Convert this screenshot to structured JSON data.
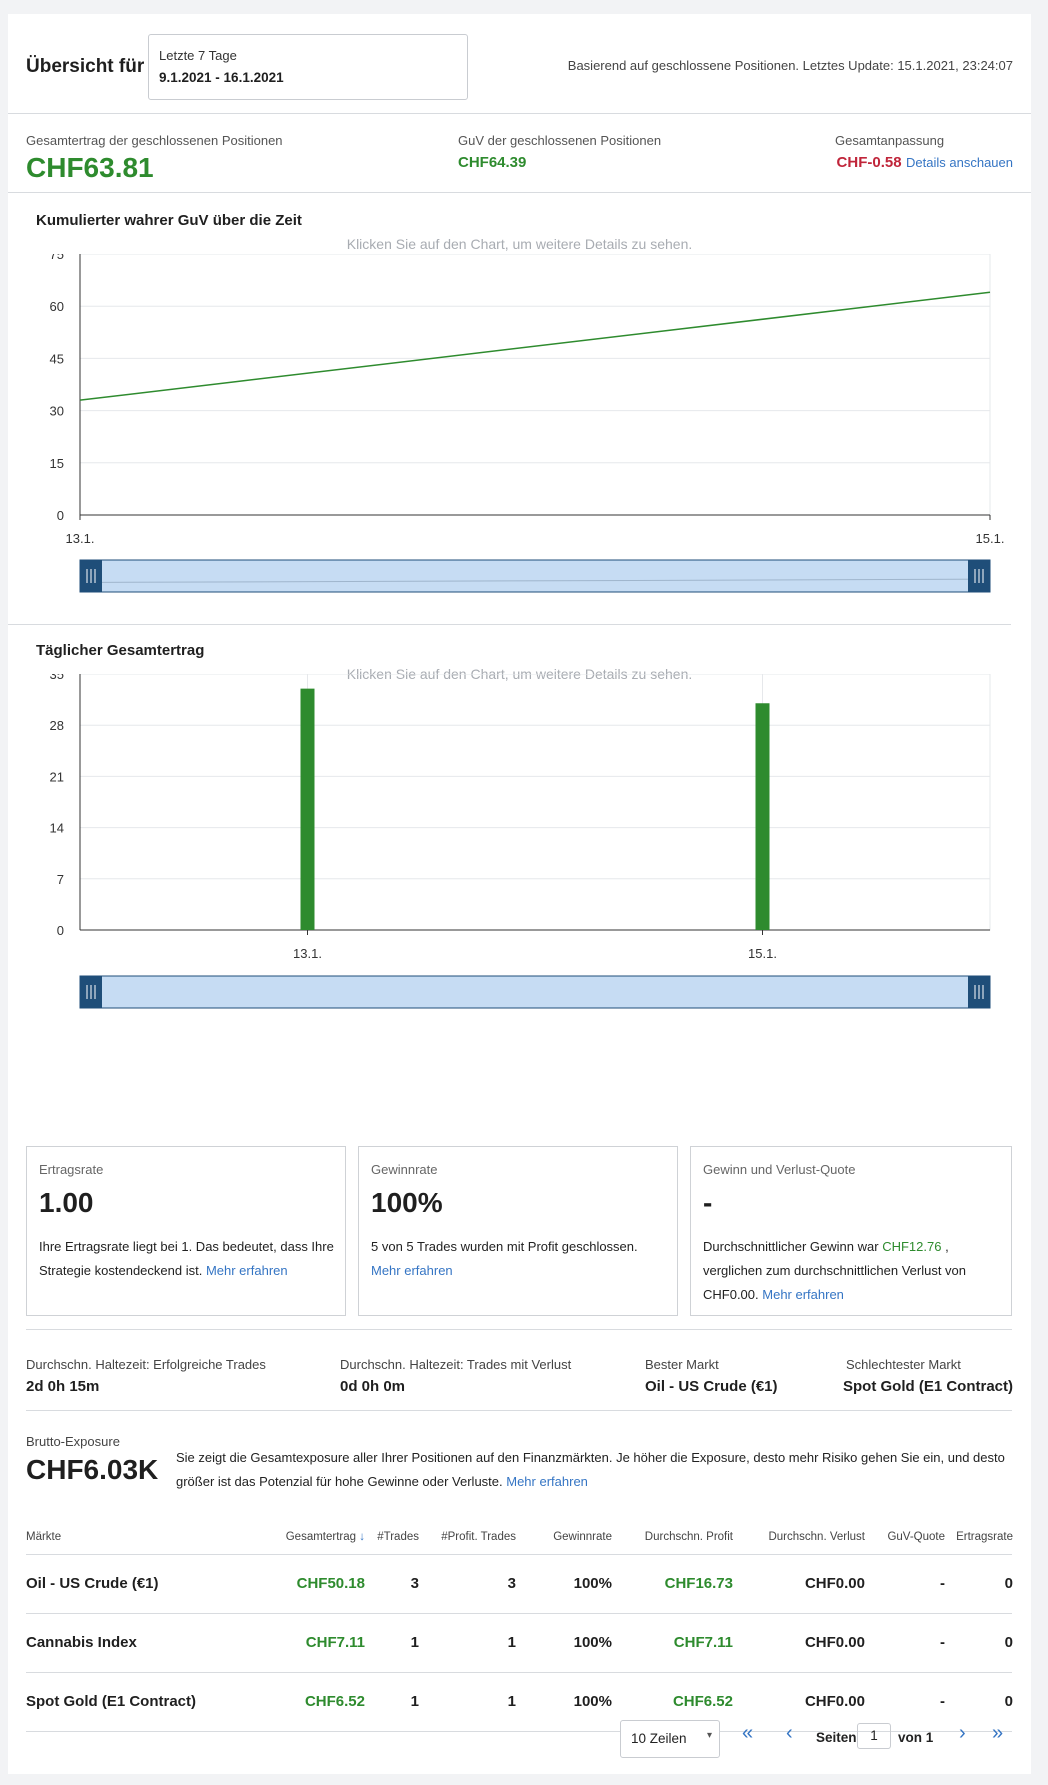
{
  "header": {
    "title": "Übersicht für",
    "period_label": "Letzte 7 Tage",
    "period_range": "9.1.2021 - 16.1.2021",
    "update_note": "Basierend auf geschlossene Positionen. Letztes Update: 15.1.2021, 23:24:07"
  },
  "kpis": {
    "total_label": "Gesamtertrag der geschlossenen Positionen",
    "total_value": "CHF63.81",
    "pnl_label": "GuV der geschlossenen Positionen",
    "pnl_value": "CHF64.39",
    "adjust_label": "Gesamtanpassung",
    "adjust_value": "CHF-0.58",
    "adjust_link": "Details anschauen"
  },
  "chart_hint": "Klicken Sie auf den Chart, um weitere Details zu sehen.",
  "colors": {
    "green": "#2e8b2e",
    "red": "#c0253a",
    "link": "#3575c4",
    "navigator_fill": "#c6dcf3",
    "navigator_handle": "#1f4e79"
  },
  "chart_data": [
    {
      "type": "line",
      "title": "Kumulierter wahrer GuV über die Zeit",
      "x": [
        "13.1.",
        "15.1."
      ],
      "series": [
        {
          "values": [
            33,
            64
          ]
        }
      ],
      "yticks": [
        0,
        15,
        30,
        45,
        60,
        75
      ],
      "ylim": [
        0,
        75
      ],
      "grid": true
    },
    {
      "type": "bar",
      "title": "Täglicher Gesamtertrag",
      "categories": [
        "13.1.",
        "15.1."
      ],
      "values": [
        33,
        31
      ],
      "yticks": [
        0,
        7,
        14,
        21,
        28,
        35
      ],
      "ylim": [
        0,
        35
      ],
      "grid": true
    }
  ],
  "stats": [
    {
      "label": "Ertragsrate",
      "value": "1.00",
      "text": "Ihre Ertragsrate liegt bei 1. Das bedeutet, dass Ihre Strategie kostendeckend ist.",
      "link": "Mehr erfahren"
    },
    {
      "label": "Gewinnrate",
      "value": "100%",
      "text": "5 von 5 Trades wurden mit Profit geschlossen.",
      "link": "Mehr erfahren"
    },
    {
      "label": "Gewinn und Verlust-Quote",
      "value": "-",
      "text_before": "Durchschnittlicher Gewinn war",
      "avg_win": "CHF12.76",
      "text_after": ", verglichen zum durchschnittlichen Verlust von CHF0.00.",
      "link": "Mehr erfahren"
    }
  ],
  "holding": {
    "win_label": "Durchschn. Haltezeit: Erfolgreiche Trades",
    "win_value": "2d 0h 15m",
    "loss_label": "Durchschn. Haltezeit: Trades mit Verlust",
    "loss_value": "0d 0h 0m",
    "best_label": "Bester Markt",
    "best_value": "Oil - US Crude (€1)",
    "worst_label": "Schlechtester Markt",
    "worst_value": "Spot Gold (E1 Contract)"
  },
  "exposure": {
    "label": "Brutto-Exposure",
    "value": "CHF6.03K",
    "text": "Sie zeigt die Gesamtexposure aller Ihrer Positionen auf den Finanzmärkten. Je höher die Exposure, desto mehr Risiko gehen Sie ein, und desto größer ist das Potenzial für hohe Gewinne oder Verluste.",
    "link": "Mehr erfahren"
  },
  "table": {
    "headers": [
      "Märkte",
      "Gesamtertrag",
      "#Trades",
      "#Profit. Trades",
      "Gewinnrate",
      "Durchschn. Profit",
      "Durchschn. Verlust",
      "GuV-Quote",
      "Ertragsrate"
    ],
    "rows": [
      [
        "Oil - US Crude (€1)",
        "CHF50.18",
        "3",
        "3",
        "100%",
        "CHF16.73",
        "CHF0.00",
        "-",
        "0"
      ],
      [
        "Cannabis Index",
        "CHF7.11",
        "1",
        "1",
        "100%",
        "CHF7.11",
        "CHF0.00",
        "-",
        "0"
      ],
      [
        "Spot Gold (E1 Contract)",
        "CHF6.52",
        "1",
        "1",
        "100%",
        "CHF6.52",
        "CHF0.00",
        "-",
        "0"
      ]
    ]
  },
  "pager": {
    "rows_option": "10 Zeilen",
    "pages_label": "Seiten",
    "page_value": "1",
    "of_label": "von 1"
  }
}
